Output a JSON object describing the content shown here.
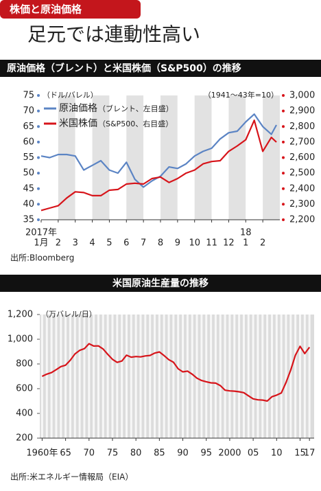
{
  "header": {
    "tag": "株価と原油価格",
    "title": "足元では連動性高い"
  },
  "chart_data": [
    {
      "type": "line",
      "title": "原油価格（ブレント）と米国株価（S&P500）の推移",
      "ylabel": "（ドル/バレル）",
      "y2label": "（1941～43年=10）",
      "x": [
        0,
        0.5,
        1,
        1.5,
        2,
        2.5,
        3,
        3.5,
        4,
        4.5,
        5,
        5.5,
        6,
        6.5,
        7,
        7.5,
        8,
        8.5,
        9,
        9.5,
        10,
        10.5,
        11,
        11.5,
        12,
        12.5,
        13,
        13.5,
        13.8
      ],
      "xlim": [
        0,
        14
      ],
      "xticks": [
        {
          "value": 0,
          "label": "1月"
        },
        {
          "value": 1,
          "label": "2"
        },
        {
          "value": 2,
          "label": "3"
        },
        {
          "value": 3,
          "label": "4"
        },
        {
          "value": 4,
          "label": "5"
        },
        {
          "value": 5,
          "label": "6"
        },
        {
          "value": 6,
          "label": "7"
        },
        {
          "value": 7,
          "label": "8"
        },
        {
          "value": 8,
          "label": "9"
        },
        {
          "value": 9,
          "label": "10"
        },
        {
          "value": 10,
          "label": "11"
        },
        {
          "value": 11,
          "label": "12"
        },
        {
          "value": 12,
          "label": "1"
        },
        {
          "value": 13,
          "label": "2"
        }
      ],
      "year_labels": [
        {
          "value": 0,
          "label": "2017年"
        },
        {
          "value": 12,
          "label": "18"
        }
      ],
      "ylim": [
        35,
        75
      ],
      "yticks": [
        35,
        40,
        45,
        50,
        55,
        60,
        65,
        70,
        75
      ],
      "y2lim": [
        2200,
        3000
      ],
      "y2ticks": [
        {
          "value": 2200,
          "label": "2,200"
        },
        {
          "value": 2300,
          "label": "2,300"
        },
        {
          "value": 2400,
          "label": "2,400"
        },
        {
          "value": 2500,
          "label": "2,500"
        },
        {
          "value": 2600,
          "label": "2,600"
        },
        {
          "value": 2700,
          "label": "2,700"
        },
        {
          "value": 2800,
          "label": "2,800"
        },
        {
          "value": 2900,
          "label": "2,900"
        },
        {
          "value": 3000,
          "label": "3,000"
        }
      ],
      "series": [
        {
          "name": "原油価格",
          "note": "（ブレント、左目盛）",
          "color": "#5b84c4",
          "values": [
            55.5,
            55,
            56,
            56,
            55.5,
            51,
            52.5,
            54,
            51,
            50,
            53.5,
            48,
            45.5,
            47.5,
            49,
            52,
            51.5,
            53,
            55.5,
            57,
            58,
            61,
            63,
            63.5,
            66.5,
            69,
            65,
            62.5,
            65.5
          ]
        },
        {
          "name": "米国株価",
          "note": "（S&P500、右目盛）",
          "color": "#d7141a",
          "axis": "y2",
          "values": [
            2260,
            2275,
            2290,
            2340,
            2380,
            2375,
            2355,
            2355,
            2390,
            2395,
            2430,
            2435,
            2430,
            2465,
            2475,
            2440,
            2465,
            2500,
            2520,
            2560,
            2575,
            2580,
            2640,
            2675,
            2715,
            2840,
            2640,
            2730,
            2700
          ]
        }
      ],
      "source": "出所:Bloomberg"
    },
    {
      "type": "line",
      "title": "米国原油生産量の推移",
      "ylabel": "（万バレル/日）",
      "x": [
        1960,
        1961,
        1962,
        1963,
        1964,
        1965,
        1966,
        1967,
        1968,
        1969,
        1970,
        1971,
        1972,
        1973,
        1974,
        1975,
        1976,
        1977,
        1978,
        1979,
        1980,
        1981,
        1982,
        1983,
        1984,
        1985,
        1986,
        1987,
        1988,
        1989,
        1990,
        1991,
        1992,
        1993,
        1994,
        1995,
        1996,
        1997,
        1998,
        1999,
        2000,
        2001,
        2002,
        2003,
        2004,
        2005,
        2006,
        2007,
        2008,
        2009,
        2010,
        2011,
        2012,
        2013,
        2014,
        2015,
        2016,
        2017
      ],
      "xlim": [
        1959.5,
        2018
      ],
      "xticks": [
        {
          "value": 1960,
          "label": "1960年"
        },
        {
          "value": 1965,
          "label": "65"
        },
        {
          "value": 1970,
          "label": "70"
        },
        {
          "value": 1975,
          "label": "75"
        },
        {
          "value": 1980,
          "label": "80"
        },
        {
          "value": 1985,
          "label": "85"
        },
        {
          "value": 1990,
          "label": "90"
        },
        {
          "value": 1995,
          "label": "95"
        },
        2000,
        {
          "value": 2005,
          "label": "05"
        },
        {
          "value": 2010,
          "label": "10"
        },
        {
          "value": 2015,
          "label": "15"
        },
        {
          "value": 2017,
          "label": "17"
        }
      ],
      "ylim": [
        200,
        1200
      ],
      "yticks": [
        200,
        400,
        600,
        800,
        {
          "value": 1000,
          "label": "1,000"
        },
        {
          "value": 1200,
          "label": "1,200"
        }
      ],
      "series": [
        {
          "name": "米国原油生産量",
          "color": "#d7141a",
          "values": [
            700,
            718,
            730,
            754,
            779,
            790,
            830,
            881,
            910,
            924,
            964,
            945,
            946,
            921,
            878,
            837,
            813,
            824,
            871,
            855,
            860,
            857,
            865,
            869,
            888,
            897,
            868,
            835,
            814,
            761,
            736,
            742,
            717,
            685,
            666,
            656,
            647,
            645,
            625,
            588,
            582,
            580,
            575,
            568,
            542,
            518,
            510,
            508,
            500,
            535,
            548,
            565,
            650,
            750,
            870,
            943,
            884,
            935
          ]
        }
      ],
      "source": "出所:米エネルギー情報局（EIA）"
    }
  ]
}
